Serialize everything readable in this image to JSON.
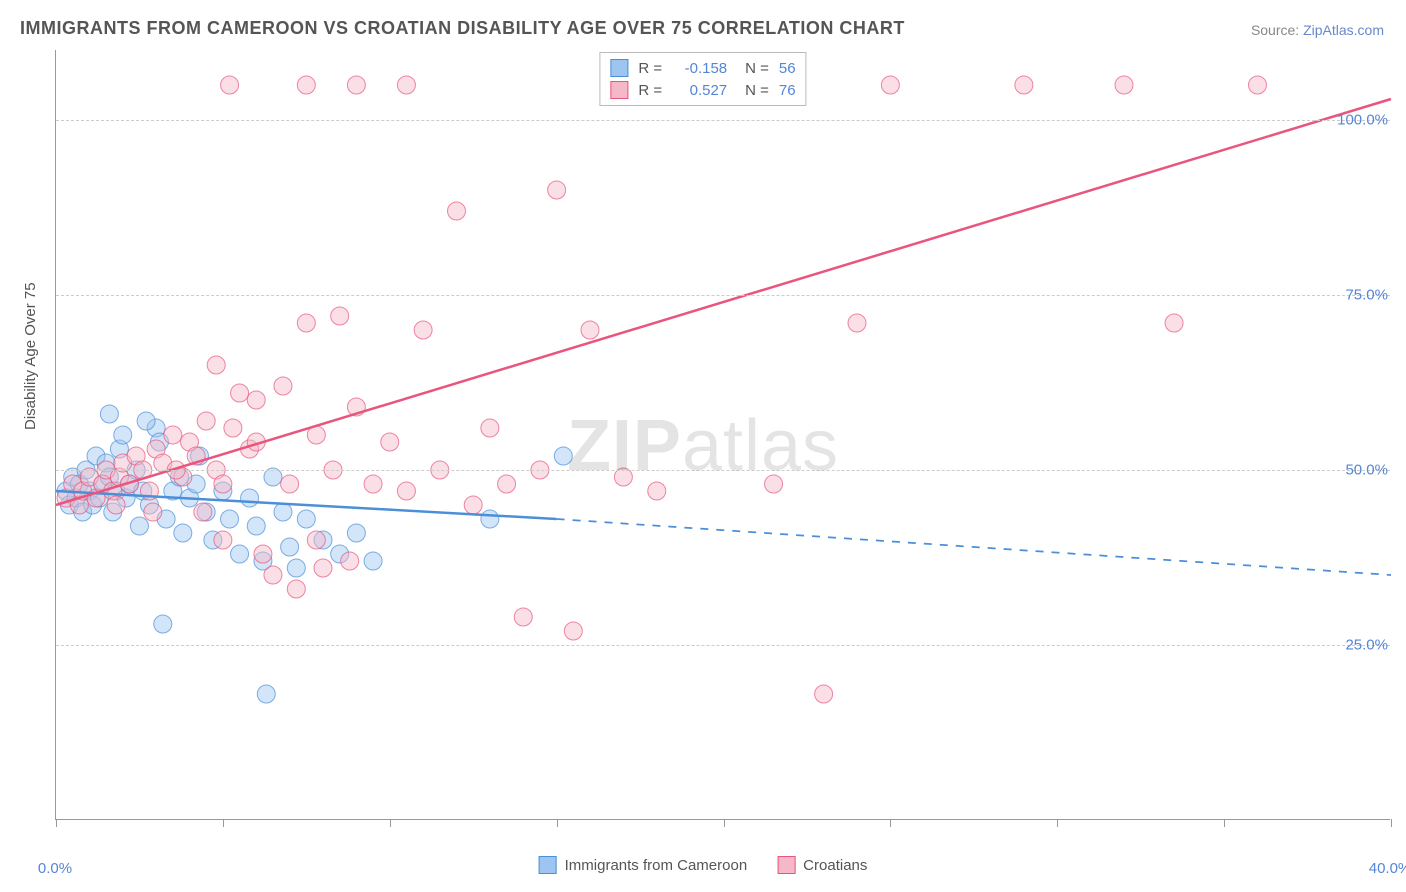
{
  "title": "IMMIGRANTS FROM CAMEROON VS CROATIAN DISABILITY AGE OVER 75 CORRELATION CHART",
  "source_label": "Source:",
  "source_name": "ZipAtlas.com",
  "watermark_a": "ZIP",
  "watermark_b": "atlas",
  "chart": {
    "type": "scatter",
    "background_color": "#ffffff",
    "grid_color": "#cccccc",
    "axis_color": "#999999",
    "label_color": "#555555",
    "value_color": "#5585d6",
    "title_fontsize": 18,
    "label_fontsize": 15,
    "ylabel": "Disability Age Over 75",
    "xlim": [
      0,
      40
    ],
    "ylim": [
      0,
      110
    ],
    "xtick_positions": [
      0,
      5,
      10,
      15,
      20,
      25,
      30,
      35,
      40
    ],
    "xtick_labels_shown": {
      "0": "0.0%",
      "40": "40.0%"
    },
    "ytick_positions": [
      25,
      50,
      75,
      100
    ],
    "ytick_labels": {
      "25": "25.0%",
      "50": "50.0%",
      "75": "75.0%",
      "100": "100.0%"
    },
    "marker_radius": 9,
    "marker_opacity": 0.45,
    "line_width": 2.5,
    "series": [
      {
        "id": "cameroon",
        "label": "Immigrants from Cameroon",
        "fill": "#9ec5f0",
        "stroke": "#4a8fd8",
        "r_label": "R =",
        "r_value": "-0.158",
        "n_label": "N =",
        "n_value": "56",
        "trend": {
          "x1": 0,
          "y1": 47,
          "x2": 15,
          "y2": 43,
          "x3": 40,
          "y3": 35,
          "dash_after": 15
        },
        "points": [
          [
            0.3,
            47
          ],
          [
            0.4,
            45
          ],
          [
            0.5,
            49
          ],
          [
            0.6,
            46
          ],
          [
            0.7,
            48
          ],
          [
            0.8,
            44
          ],
          [
            0.9,
            50
          ],
          [
            1.0,
            47
          ],
          [
            1.1,
            45
          ],
          [
            1.2,
            52
          ],
          [
            1.3,
            46
          ],
          [
            1.4,
            48
          ],
          [
            1.5,
            51
          ],
          [
            1.6,
            49
          ],
          [
            1.7,
            44
          ],
          [
            1.8,
            47
          ],
          [
            1.9,
            53
          ],
          [
            2.0,
            55
          ],
          [
            2.1,
            46
          ],
          [
            2.2,
            48
          ],
          [
            2.4,
            50
          ],
          [
            2.5,
            42
          ],
          [
            2.6,
            47
          ],
          [
            2.8,
            45
          ],
          [
            3.0,
            56
          ],
          [
            3.1,
            54
          ],
          [
            3.3,
            43
          ],
          [
            3.5,
            47
          ],
          [
            3.7,
            49
          ],
          [
            3.8,
            41
          ],
          [
            4.0,
            46
          ],
          [
            4.2,
            48
          ],
          [
            4.5,
            44
          ],
          [
            4.7,
            40
          ],
          [
            5.0,
            47
          ],
          [
            5.2,
            43
          ],
          [
            5.5,
            38
          ],
          [
            5.8,
            46
          ],
          [
            6.0,
            42
          ],
          [
            6.2,
            37
          ],
          [
            6.5,
            49
          ],
          [
            6.8,
            44
          ],
          [
            7.0,
            39
          ],
          [
            7.2,
            36
          ],
          [
            7.5,
            43
          ],
          [
            8.0,
            40
          ],
          [
            8.5,
            38
          ],
          [
            9.0,
            41
          ],
          [
            9.5,
            37
          ],
          [
            6.3,
            18
          ],
          [
            3.2,
            28
          ],
          [
            2.7,
            57
          ],
          [
            1.6,
            58
          ],
          [
            4.3,
            52
          ],
          [
            15.2,
            52
          ],
          [
            13.0,
            43
          ]
        ]
      },
      {
        "id": "croatians",
        "label": "Croatians",
        "fill": "#f5b8c8",
        "stroke": "#e8557d",
        "r_label": "R =",
        "r_value": "0.527",
        "n_label": "N =",
        "n_value": "76",
        "trend": {
          "x1": 0,
          "y1": 45,
          "x2": 40,
          "y2": 103,
          "dash_after": 40
        },
        "points": [
          [
            0.3,
            46
          ],
          [
            0.5,
            48
          ],
          [
            0.7,
            45
          ],
          [
            0.8,
            47
          ],
          [
            1.0,
            49
          ],
          [
            1.2,
            46
          ],
          [
            1.4,
            48
          ],
          [
            1.5,
            50
          ],
          [
            1.7,
            47
          ],
          [
            1.9,
            49
          ],
          [
            2.0,
            51
          ],
          [
            2.2,
            48
          ],
          [
            2.4,
            52
          ],
          [
            2.6,
            50
          ],
          [
            2.8,
            47
          ],
          [
            3.0,
            53
          ],
          [
            3.2,
            51
          ],
          [
            3.5,
            55
          ],
          [
            3.8,
            49
          ],
          [
            4.0,
            54
          ],
          [
            4.2,
            52
          ],
          [
            4.5,
            57
          ],
          [
            4.8,
            50
          ],
          [
            5.0,
            48
          ],
          [
            5.3,
            56
          ],
          [
            5.5,
            61
          ],
          [
            5.8,
            53
          ],
          [
            6.0,
            60
          ],
          [
            6.5,
            35
          ],
          [
            6.8,
            62
          ],
          [
            7.0,
            48
          ],
          [
            7.2,
            33
          ],
          [
            7.5,
            71
          ],
          [
            7.8,
            55
          ],
          [
            8.0,
            36
          ],
          [
            8.3,
            50
          ],
          [
            8.5,
            72
          ],
          [
            8.8,
            37
          ],
          [
            9.0,
            59
          ],
          [
            9.5,
            48
          ],
          [
            10.0,
            54
          ],
          [
            10.5,
            47
          ],
          [
            11.0,
            70
          ],
          [
            11.5,
            50
          ],
          [
            12.0,
            87
          ],
          [
            12.5,
            45
          ],
          [
            13.0,
            56
          ],
          [
            13.5,
            48
          ],
          [
            14.0,
            29
          ],
          [
            14.5,
            50
          ],
          [
            15.0,
            90
          ],
          [
            15.5,
            27
          ],
          [
            16.0,
            70
          ],
          [
            17.0,
            49
          ],
          [
            18.0,
            47
          ],
          [
            9.0,
            105
          ],
          [
            10.5,
            105
          ],
          [
            29.0,
            105
          ],
          [
            32.0,
            105
          ],
          [
            36.0,
            105
          ],
          [
            25.0,
            105
          ],
          [
            7.5,
            105
          ],
          [
            24.0,
            71
          ],
          [
            33.5,
            71
          ],
          [
            21.5,
            48
          ],
          [
            23.0,
            18
          ],
          [
            5.2,
            105
          ],
          [
            4.8,
            65
          ],
          [
            5.0,
            40
          ],
          [
            6.2,
            38
          ],
          [
            6.0,
            54
          ],
          [
            7.8,
            40
          ],
          [
            3.6,
            50
          ],
          [
            2.9,
            44
          ],
          [
            1.8,
            45
          ],
          [
            4.4,
            44
          ]
        ]
      }
    ]
  },
  "legend_bottom": [
    {
      "swatch_fill": "#9ec5f0",
      "swatch_stroke": "#4a8fd8",
      "label": "Immigrants from Cameroon"
    },
    {
      "swatch_fill": "#f5b8c8",
      "swatch_stroke": "#e8557d",
      "label": "Croatians"
    }
  ]
}
